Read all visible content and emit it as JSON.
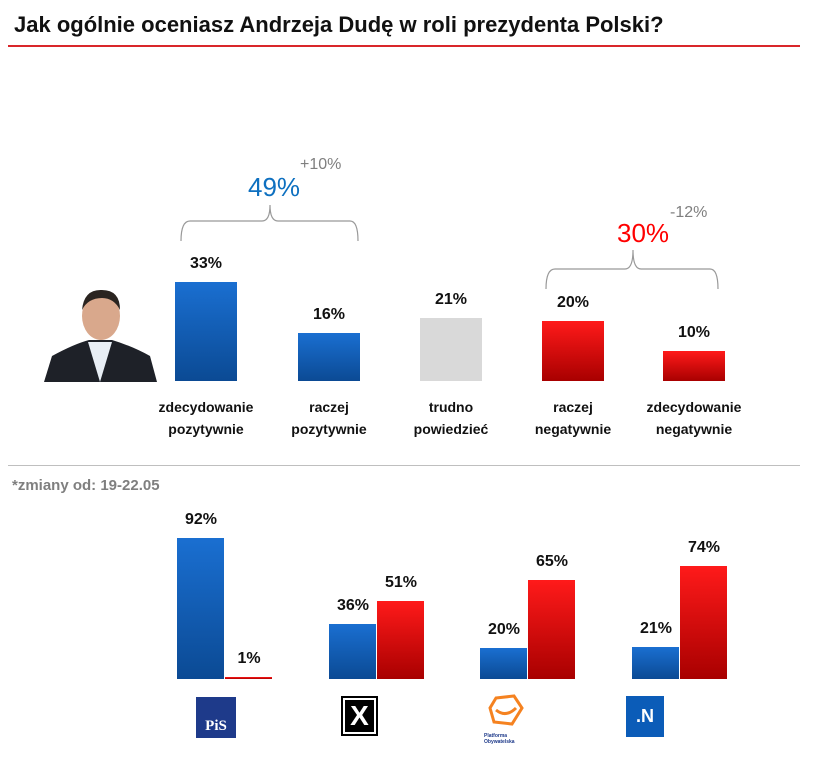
{
  "title": "Jak ogólnie oceniasz Andrzeja Dudę w roli prezydenta Polski?",
  "note": "*zmiany od: 19-22.05",
  "chart_data": [
    {
      "type": "bar",
      "title": "Jak ogólnie oceniasz Andrzeja Dudę w roli prezydenta Polski?",
      "categories": [
        "zdecydowanie pozytywnie",
        "raczej pozytywnie",
        "trudno powiedzieć",
        "raczej negatywnie",
        "zdecydowanie negatywnie"
      ],
      "cat_lines": [
        [
          "zdecydowanie",
          "pozytywnie"
        ],
        [
          "raczej",
          "pozytywnie"
        ],
        [
          "trudno",
          "powiedzieć"
        ],
        [
          "raczej",
          "negatywnie"
        ],
        [
          "zdecydowanie",
          "negatywnie"
        ]
      ],
      "values": [
        33,
        16,
        21,
        20,
        10
      ],
      "labels": [
        "33%",
        "16%",
        "21%",
        "20%",
        "10%"
      ],
      "groups": [
        {
          "label": "49%",
          "change": "+10%",
          "color": "#0e70c0"
        },
        {
          "label": "30%",
          "change": "-12%",
          "color": "#ff0000"
        }
      ],
      "ylim": [
        0,
        35
      ]
    },
    {
      "type": "bar",
      "categories": [
        "PiS",
        "Kukiz",
        "Platforma Obywatelska",
        ".N"
      ],
      "series": [
        {
          "name": "positive",
          "values": [
            92,
            36,
            20,
            21
          ],
          "labels": [
            "92%",
            "36%",
            "20%",
            "21%"
          ]
        },
        {
          "name": "negative",
          "values": [
            1,
            51,
            65,
            74
          ],
          "labels": [
            "1%",
            "51%",
            "65%",
            "74%"
          ]
        }
      ],
      "logos": {
        "pis": "PiS",
        "kukiz": "X",
        "po": "Platforma Obywatelska",
        "n": ".N"
      },
      "ylim": [
        0,
        100
      ]
    }
  ]
}
